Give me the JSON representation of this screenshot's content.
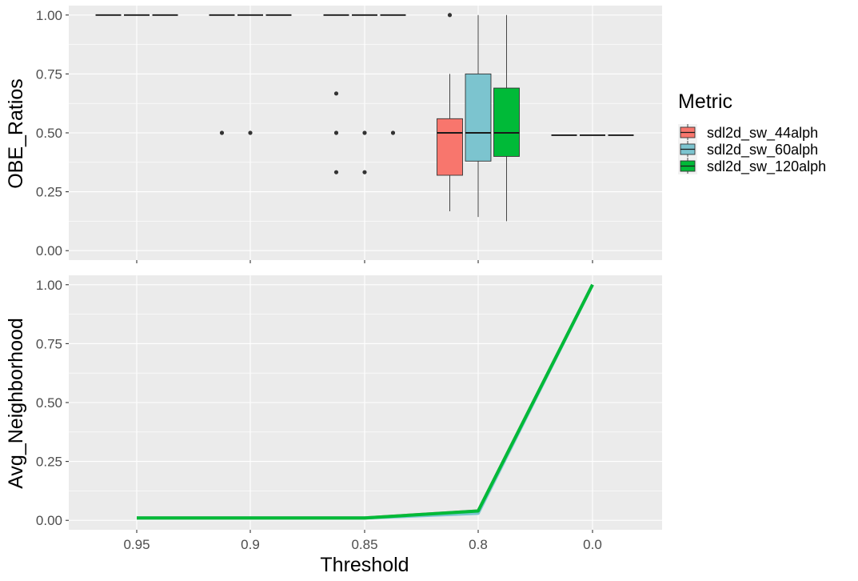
{
  "chart_data": [
    {
      "type": "boxplot",
      "ylabel": "OBE_Ratios",
      "ylim": [
        -0.04,
        1.04
      ],
      "y_ticks": [
        "0.00",
        "0.25",
        "0.50",
        "0.75",
        "1.00"
      ],
      "y_tick_values": [
        0,
        0.25,
        0.5,
        0.75,
        1.0
      ],
      "categories": [
        "0.95",
        "0.9",
        "0.85",
        "0.8",
        "0.0"
      ],
      "groups": [
        {
          "threshold": "0.95",
          "boxes": [
            {
              "series": "sdl2d_sw_44alph",
              "q1": 1,
              "median": 1,
              "q3": 1,
              "lower": 1,
              "upper": 1,
              "outliers": []
            },
            {
              "series": "sdl2d_sw_60alph",
              "q1": 1,
              "median": 1,
              "q3": 1,
              "lower": 1,
              "upper": 1,
              "outliers": []
            },
            {
              "series": "sdl2d_sw_120alph",
              "q1": 1,
              "median": 1,
              "q3": 1,
              "lower": 1,
              "upper": 1,
              "outliers": []
            }
          ]
        },
        {
          "threshold": "0.9",
          "boxes": [
            {
              "series": "sdl2d_sw_44alph",
              "q1": 1,
              "median": 1,
              "q3": 1,
              "lower": 1,
              "upper": 1,
              "outliers": [
                0.5
              ]
            },
            {
              "series": "sdl2d_sw_60alph",
              "q1": 1,
              "median": 1,
              "q3": 1,
              "lower": 1,
              "upper": 1,
              "outliers": [
                0.5
              ]
            },
            {
              "series": "sdl2d_sw_120alph",
              "q1": 1,
              "median": 1,
              "q3": 1,
              "lower": 1,
              "upper": 1,
              "outliers": []
            }
          ]
        },
        {
          "threshold": "0.85",
          "boxes": [
            {
              "series": "sdl2d_sw_44alph",
              "q1": 1,
              "median": 1,
              "q3": 1,
              "lower": 1,
              "upper": 1,
              "outliers": [
                0.667,
                0.5,
                0.333
              ]
            },
            {
              "series": "sdl2d_sw_60alph",
              "q1": 1,
              "median": 1,
              "q3": 1,
              "lower": 1,
              "upper": 1,
              "outliers": [
                0.5,
                0.333
              ]
            },
            {
              "series": "sdl2d_sw_120alph",
              "q1": 1,
              "median": 1,
              "q3": 1,
              "lower": 1,
              "upper": 1,
              "outliers": [
                0.5
              ]
            }
          ]
        },
        {
          "threshold": "0.8",
          "boxes": [
            {
              "series": "sdl2d_sw_44alph",
              "q1": 0.32,
              "median": 0.5,
              "q3": 0.56,
              "lower": 0.167,
              "upper": 0.75,
              "outliers": [
                1.0
              ]
            },
            {
              "series": "sdl2d_sw_60alph",
              "q1": 0.38,
              "median": 0.5,
              "q3": 0.75,
              "lower": 0.143,
              "upper": 1.0,
              "outliers": []
            },
            {
              "series": "sdl2d_sw_120alph",
              "q1": 0.4,
              "median": 0.5,
              "q3": 0.69,
              "lower": 0.125,
              "upper": 1.0,
              "outliers": []
            }
          ]
        },
        {
          "threshold": "0.0",
          "boxes": [
            {
              "series": "sdl2d_sw_44alph",
              "q1": 0.49,
              "median": 0.49,
              "q3": 0.49,
              "lower": 0.49,
              "upper": 0.49,
              "outliers": []
            },
            {
              "series": "sdl2d_sw_60alph",
              "q1": 0.49,
              "median": 0.49,
              "q3": 0.49,
              "lower": 0.49,
              "upper": 0.49,
              "outliers": []
            },
            {
              "series": "sdl2d_sw_120alph",
              "q1": 0.49,
              "median": 0.49,
              "q3": 0.49,
              "lower": 0.49,
              "upper": 0.49,
              "outliers": []
            }
          ]
        }
      ]
    },
    {
      "type": "line",
      "ylabel": "Avg_Neighborhood",
      "xlabel": "Threshold",
      "ylim": [
        -0.04,
        1.04
      ],
      "y_ticks": [
        "0.00",
        "0.25",
        "0.50",
        "0.75",
        "1.00"
      ],
      "y_tick_values": [
        0,
        0.25,
        0.5,
        0.75,
        1.0
      ],
      "categories": [
        "0.95",
        "0.9",
        "0.85",
        "0.8",
        "0.0"
      ],
      "series": [
        {
          "name": "sdl2d_sw_44alph",
          "values": [
            0.01,
            0.01,
            0.01,
            0.04,
            1.0
          ]
        },
        {
          "name": "sdl2d_sw_60alph",
          "values": [
            0.01,
            0.01,
            0.01,
            0.03,
            1.0
          ]
        },
        {
          "name": "sdl2d_sw_120alph",
          "values": [
            0.01,
            0.01,
            0.01,
            0.04,
            1.0
          ]
        }
      ]
    }
  ],
  "legend": {
    "title": "Metric",
    "placement": "right",
    "items": [
      {
        "label": "sdl2d_sw_44alph",
        "color": "#F8766D"
      },
      {
        "label": "sdl2d_sw_60alph",
        "color": "#7CC4CF"
      },
      {
        "label": "sdl2d_sw_120alph",
        "color": "#00BA38"
      }
    ]
  },
  "style": {
    "panel_background": "#EBEBEB",
    "grid_color": "#FFFFFF",
    "line_color": "#00BA38"
  }
}
